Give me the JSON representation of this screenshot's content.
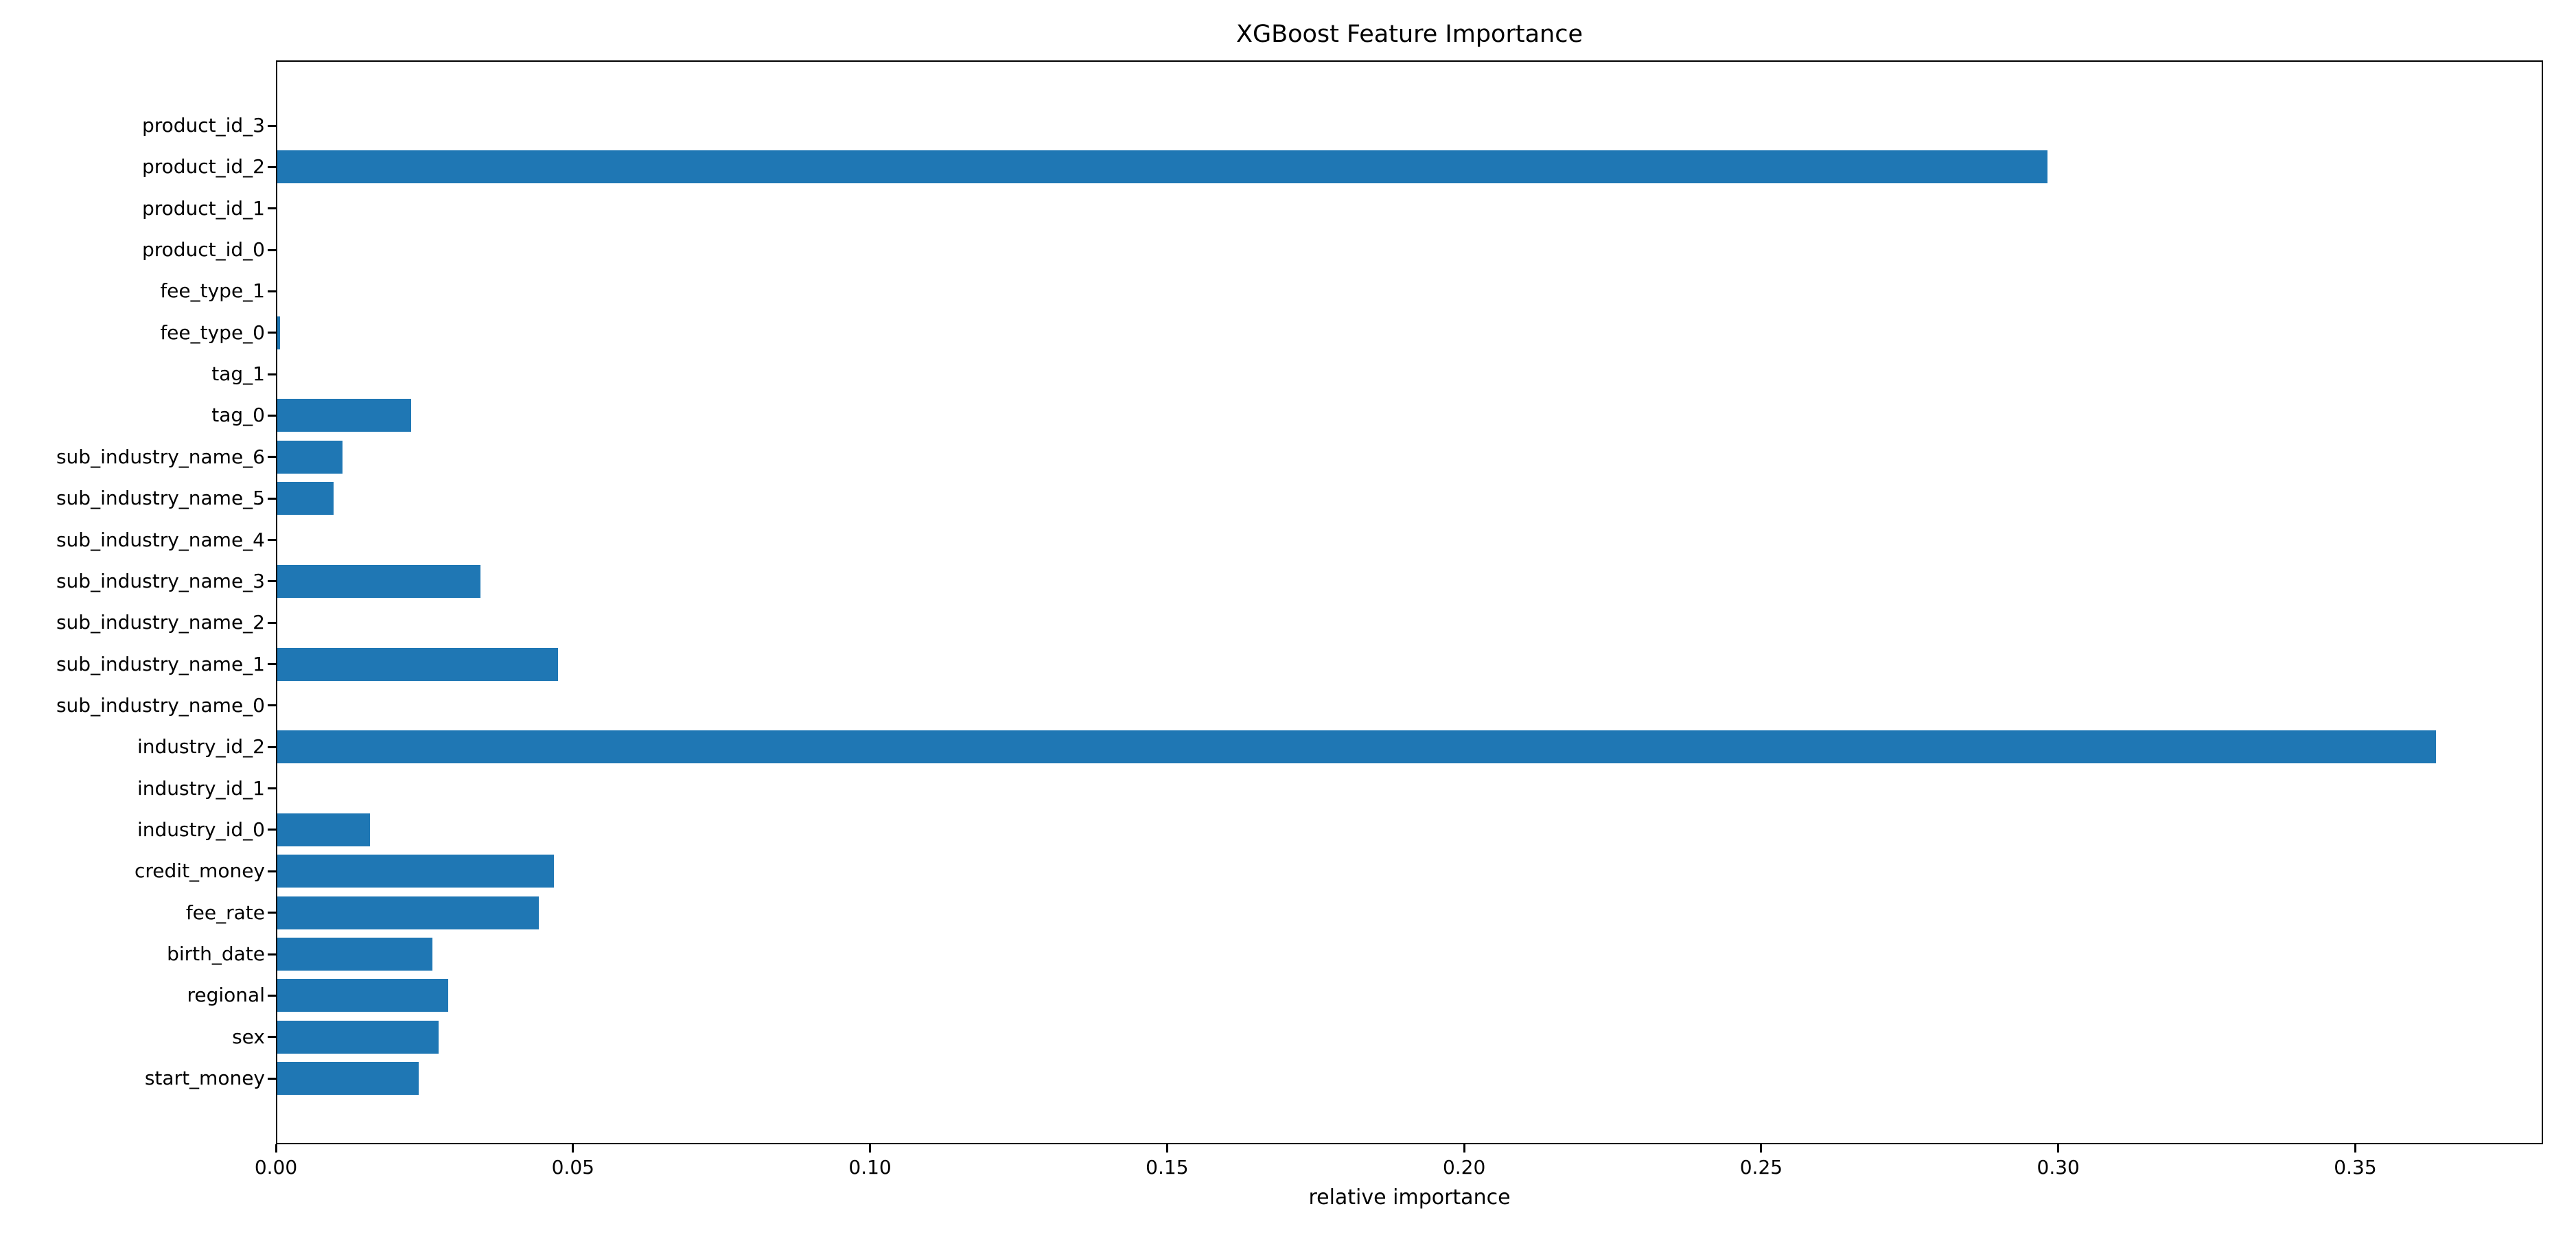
{
  "figure": {
    "background": "#ffffff",
    "text_color": "#000000"
  },
  "chart_data": {
    "type": "bar",
    "orientation": "horizontal",
    "title": "XGBoost Feature Importance",
    "xlabel": "relative importance",
    "ylabel": "",
    "grid": false,
    "legend": null,
    "bar_color": "#1f77b4",
    "xlim": [
      0,
      0.3816
    ],
    "xticks": [
      0.0,
      0.05,
      0.1,
      0.15,
      0.2,
      0.25,
      0.3,
      0.35
    ],
    "xtick_labels": [
      "0.00",
      "0.05",
      "0.10",
      "0.15",
      "0.20",
      "0.25",
      "0.30",
      "0.35"
    ],
    "categories": [
      "product_id_3",
      "product_id_2",
      "product_id_1",
      "product_id_0",
      "fee_type_1",
      "fee_type_0",
      "tag_1",
      "tag_0",
      "sub_industry_name_6",
      "sub_industry_name_5",
      "sub_industry_name_4",
      "sub_industry_name_3",
      "sub_industry_name_2",
      "sub_industry_name_1",
      "sub_industry_name_0",
      "industry_id_2",
      "industry_id_1",
      "industry_id_0",
      "credit_money",
      "fee_rate",
      "birth_date",
      "regional",
      "sex",
      "start_money"
    ],
    "values": [
      0,
      0.298,
      0,
      0,
      0,
      0.0005,
      0,
      0.0225,
      0.011,
      0.0095,
      0,
      0.0342,
      0,
      0.0473,
      0,
      0.3633,
      0,
      0.0156,
      0.0466,
      0.044,
      0.0261,
      0.0288,
      0.0271,
      0.0238
    ]
  }
}
